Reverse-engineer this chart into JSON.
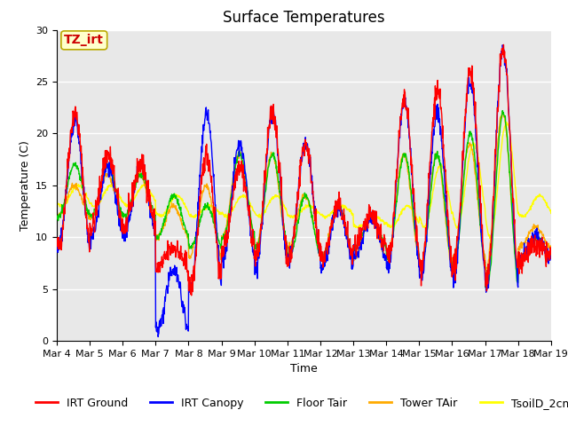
{
  "title": "Surface Temperatures",
  "xlabel": "Time",
  "ylabel": "Temperature (C)",
  "ylim": [
    0,
    30
  ],
  "yticks": [
    0,
    5,
    10,
    15,
    20,
    25,
    30
  ],
  "xtick_labels": [
    "Mar 4",
    "Mar 5",
    "Mar 6",
    "Mar 7",
    "Mar 8",
    "Mar 9",
    "Mar 10",
    "Mar 11",
    "Mar 12",
    "Mar 13",
    "Mar 14",
    "Mar 15",
    "Mar 16",
    "Mar 17",
    "Mar 18",
    "Mar 19"
  ],
  "series_colors": {
    "IRT Ground": "#ff0000",
    "IRT Canopy": "#0000ff",
    "Floor Tair": "#00cc00",
    "Tower TAir": "#ffaa00",
    "TsoilD_2cm": "#ffff00"
  },
  "annotation_text": "TZ_irt",
  "annotation_color": "#cc0000",
  "annotation_bg": "#ffffcc",
  "annotation_border": "#bbaa00",
  "plot_bg": "#e8e8e8",
  "title_fontsize": 12,
  "axis_label_fontsize": 9,
  "tick_fontsize": 8,
  "legend_fontsize": 9
}
